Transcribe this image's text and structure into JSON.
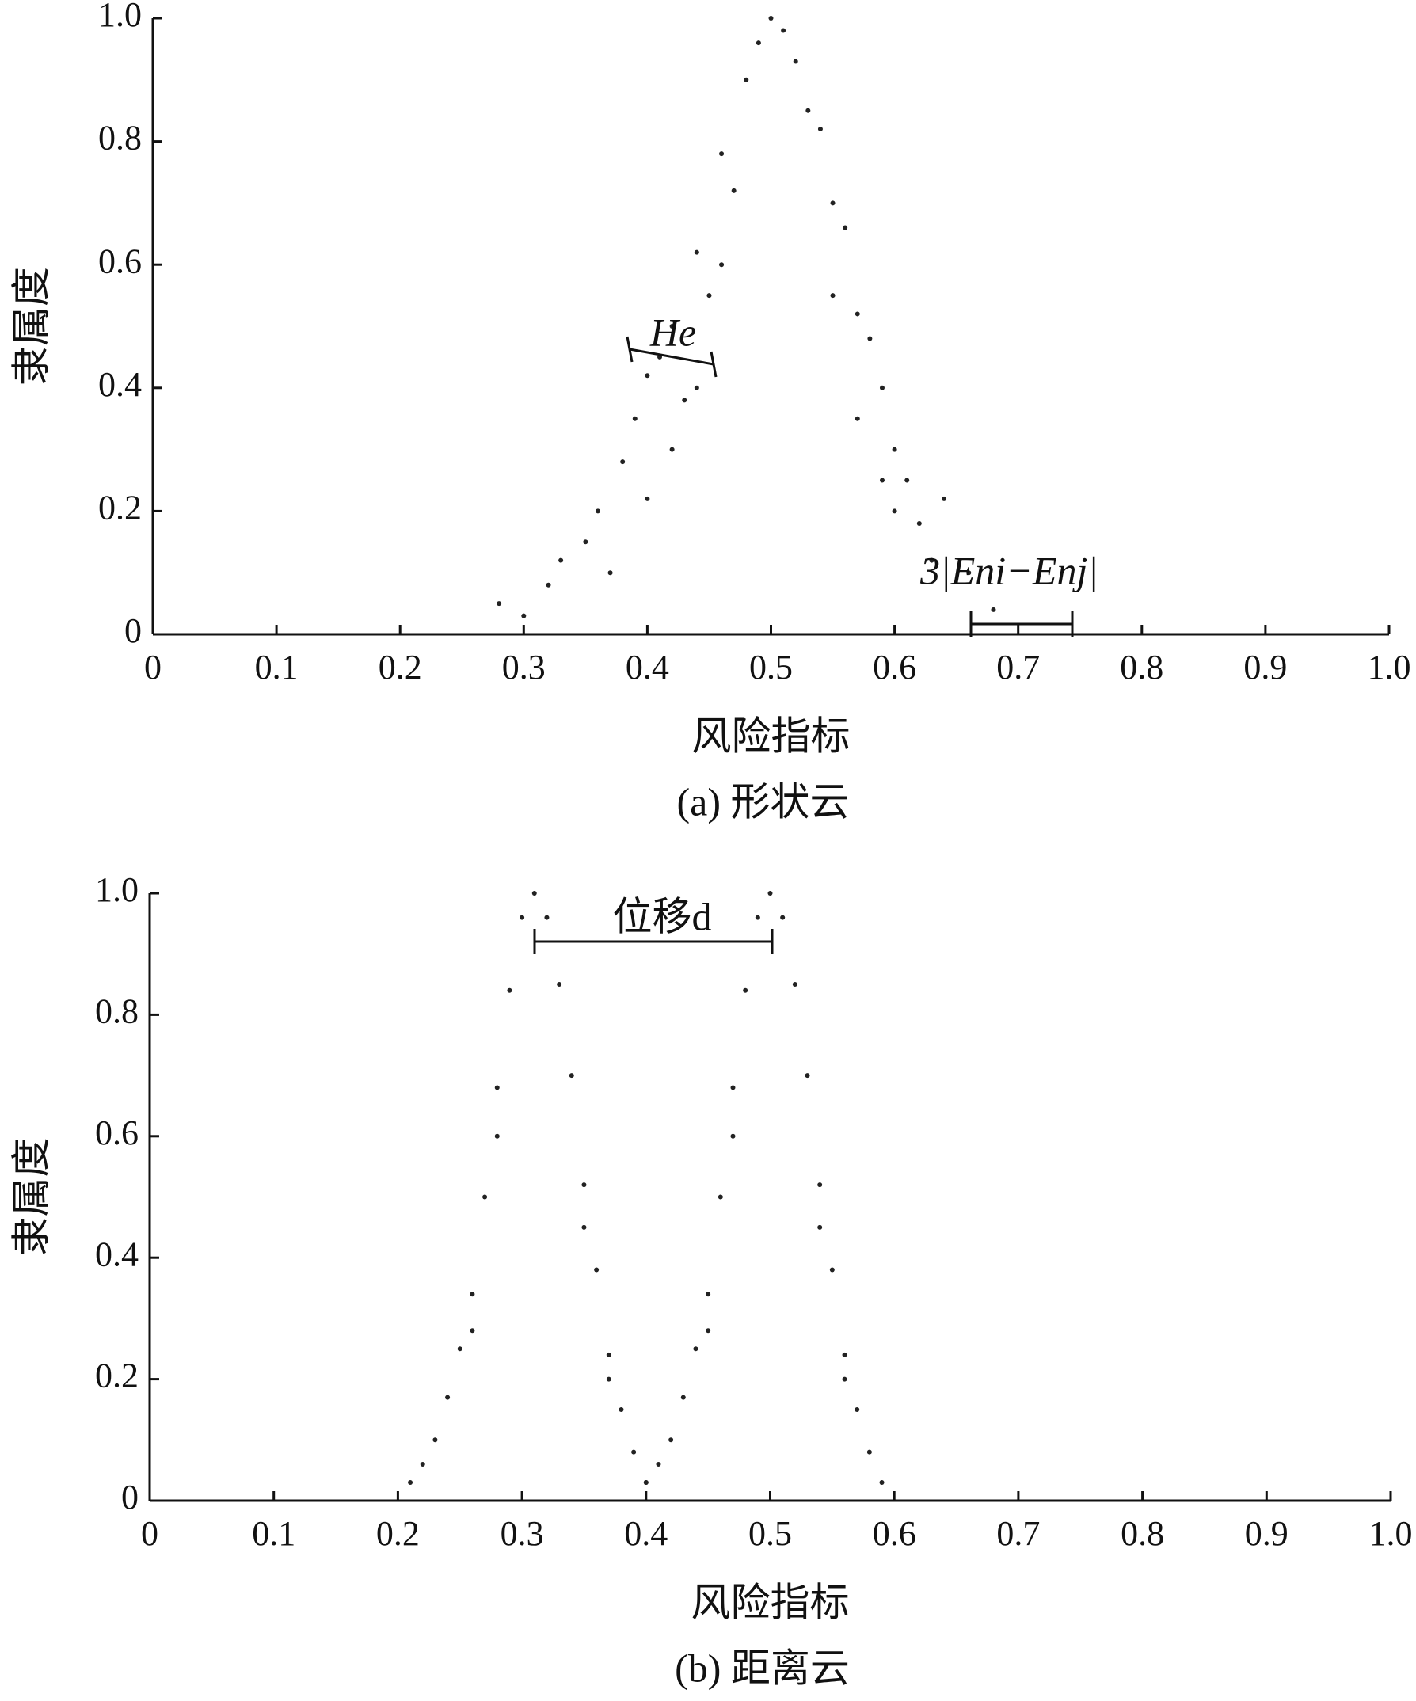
{
  "chart_data": [
    {
      "type": "scatter",
      "title": "(a) 形状云",
      "x_label": "风险指标",
      "y_label": "隶属度",
      "xlim": [
        0,
        1
      ],
      "ylim": [
        0,
        1
      ],
      "xticks": [
        0,
        0.1,
        0.2,
        0.3,
        0.4,
        0.5,
        0.6,
        0.7,
        0.8,
        0.9,
        {
          "value": 1,
          "label": "1.0"
        }
      ],
      "yticks": [
        0,
        0.2,
        0.4,
        0.6,
        0.8,
        {
          "value": 1,
          "label": "1.0"
        }
      ],
      "annotations": [
        {
          "text": "He"
        },
        {
          "text": "3|Eni−Enj|"
        }
      ],
      "series": [
        {
          "color": "#222222",
          "x": [
            0.28,
            0.3,
            0.32,
            0.33,
            0.35,
            0.36,
            0.37,
            0.38,
            0.39,
            0.4,
            0.41,
            0.42,
            0.43,
            0.44,
            0.45,
            0.46,
            0.47,
            0.48,
            0.49,
            0.5,
            0.51,
            0.52,
            0.53,
            0.54,
            0.55,
            0.56,
            0.57,
            0.58,
            0.59,
            0.6,
            0.61,
            0.62,
            0.63,
            0.64,
            0.66,
            0.68,
            0.42,
            0.44,
            0.46,
            0.55,
            0.57,
            0.59,
            0.4,
            0.6
          ],
          "values": [
            0.05,
            0.03,
            0.08,
            0.12,
            0.15,
            0.2,
            0.1,
            0.28,
            0.35,
            0.22,
            0.45,
            0.5,
            0.38,
            0.62,
            0.55,
            0.78,
            0.72,
            0.9,
            0.96,
            1.0,
            0.98,
            0.93,
            0.85,
            0.82,
            0.7,
            0.66,
            0.52,
            0.48,
            0.4,
            0.3,
            0.25,
            0.18,
            0.12,
            0.22,
            0.1,
            0.04,
            0.3,
            0.4,
            0.6,
            0.55,
            0.35,
            0.25,
            0.42,
            0.2
          ]
        }
      ]
    },
    {
      "type": "scatter",
      "title": "(b) 距离云",
      "x_label": "风险指标",
      "y_label": "隶属度",
      "xlim": [
        0,
        1
      ],
      "ylim": [
        0,
        1
      ],
      "xticks": [
        0,
        0.1,
        0.2,
        0.3,
        0.4,
        0.5,
        0.6,
        0.7,
        0.8,
        0.9,
        {
          "value": 1,
          "label": "1.0"
        }
      ],
      "yticks": [
        0,
        0.2,
        0.4,
        0.6,
        0.8,
        {
          "value": 1,
          "label": "1.0"
        }
      ],
      "annotations": [
        {
          "text": "位移d"
        }
      ],
      "series": [
        {
          "color": "#222222",
          "x": [
            0.21,
            0.22,
            0.23,
            0.24,
            0.25,
            0.26,
            0.27,
            0.28,
            0.29,
            0.3,
            0.31,
            0.32,
            0.33,
            0.34,
            0.35,
            0.36,
            0.37,
            0.38,
            0.39,
            0.4,
            0.26,
            0.28,
            0.35,
            0.37
          ],
          "values": [
            0.03,
            0.06,
            0.1,
            0.17,
            0.25,
            0.34,
            0.5,
            0.68,
            0.84,
            0.96,
            1.0,
            0.96,
            0.85,
            0.7,
            0.52,
            0.38,
            0.24,
            0.15,
            0.08,
            0.03,
            0.28,
            0.6,
            0.45,
            0.2
          ]
        },
        {
          "color": "#222222",
          "x": [
            0.4,
            0.41,
            0.42,
            0.43,
            0.44,
            0.45,
            0.46,
            0.47,
            0.48,
            0.49,
            0.5,
            0.51,
            0.52,
            0.53,
            0.54,
            0.55,
            0.56,
            0.57,
            0.58,
            0.59,
            0.45,
            0.47,
            0.54,
            0.56
          ],
          "values": [
            0.03,
            0.06,
            0.1,
            0.17,
            0.25,
            0.34,
            0.5,
            0.68,
            0.84,
            0.96,
            1.0,
            0.96,
            0.85,
            0.7,
            0.52,
            0.38,
            0.24,
            0.15,
            0.08,
            0.03,
            0.28,
            0.6,
            0.45,
            0.2
          ]
        }
      ]
    }
  ]
}
